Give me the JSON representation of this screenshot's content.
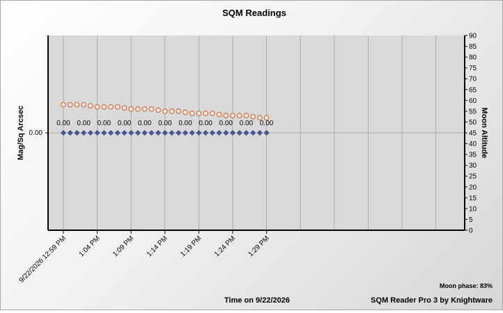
{
  "chart_data": {
    "type": "scatter",
    "title": "SQM Readings",
    "ylabel": "Mag/Sq Arcsec",
    "y2label": "Moon Altitude",
    "xlabel": "Time on 9/22/2026",
    "x_tick_labels": [
      "9/22/2026 12:59 PM",
      "1:04 PM",
      "1:09 PM",
      "1:14 PM",
      "1:19 PM",
      "1:24 PM",
      "1:29 PM"
    ],
    "y_tick_labels": [
      "0.00"
    ],
    "y2lim": [
      0,
      90
    ],
    "y2_ticks": [
      0,
      5,
      10,
      15,
      20,
      25,
      30,
      35,
      40,
      45,
      50,
      55,
      60,
      65,
      70,
      75,
      80,
      85,
      90
    ],
    "grid": true,
    "series": [
      {
        "marker": "diamond",
        "color": "#4a5a9a",
        "minutes": [
          0,
          1,
          2,
          3,
          4,
          5,
          6,
          7,
          8,
          9,
          10,
          11,
          12,
          13,
          14,
          15,
          16,
          17,
          18,
          19,
          20,
          21,
          22,
          23,
          24,
          25,
          26,
          27,
          28,
          29,
          30
        ],
        "values": [
          0,
          0,
          0,
          0,
          0,
          0,
          0,
          0,
          0,
          0,
          0,
          0,
          0,
          0,
          0,
          0,
          0,
          0,
          0,
          0,
          0,
          0,
          0,
          0,
          0,
          0,
          0,
          0,
          0,
          0,
          0
        ]
      },
      {
        "marker": "circle",
        "color": "#e8a080",
        "axis": "right",
        "minutes": [
          0,
          1,
          2,
          3,
          4,
          5,
          6,
          7,
          8,
          9,
          10,
          11,
          12,
          13,
          14,
          15,
          16,
          17,
          18,
          19,
          20,
          21,
          22,
          23,
          24,
          25,
          26,
          27,
          28,
          29,
          30
        ],
        "values": [
          58,
          58,
          58,
          58,
          57.5,
          57,
          57,
          57,
          57,
          56.5,
          56,
          56,
          56,
          56,
          55.5,
          55,
          55,
          55,
          54.5,
          54,
          54,
          54,
          54,
          53.5,
          53,
          53,
          53,
          53,
          52.5,
          52,
          52
        ]
      }
    ],
    "data_labels": [
      "0.00",
      "0.00",
      "0.00",
      "0.00",
      "0.00",
      "0.00",
      "0.00",
      "0.00",
      "0.00",
      "0.00",
      "0.00"
    ]
  },
  "footer": {
    "moon_phase": "Moon phase: 83%",
    "credit": "SQM Reader Pro 3 by Knightware"
  }
}
